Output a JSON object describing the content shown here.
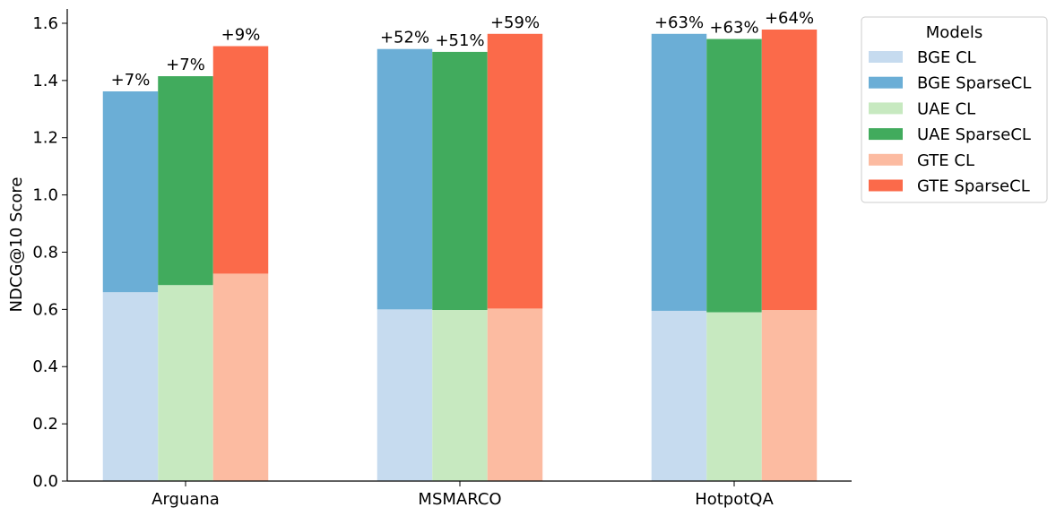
{
  "chart_data": {
    "type": "bar",
    "stacked": true,
    "categories": [
      "Arguana",
      "MSMARCO",
      "HotpotQA"
    ],
    "ylabel": "NDCG@10 Score",
    "xlabel": "",
    "ylim": [
      0,
      1.65
    ],
    "yticks": [
      "0.0",
      "0.2",
      "0.4",
      "0.6",
      "0.8",
      "1.0",
      "1.2",
      "1.4",
      "1.6"
    ],
    "legend": {
      "title": "Models",
      "placement": "outside-right-top",
      "entries": [
        "BGE CL",
        "BGE SparseCL",
        "UAE CL",
        "UAE SparseCL",
        "GTE CL",
        "GTE SparseCL"
      ]
    },
    "groups": [
      {
        "model": "BGE",
        "base_name": "BGE CL",
        "top_name": "BGE SparseCL",
        "base_color": "#c6dbef",
        "top_color": "#6baed6",
        "base": [
          0.66,
          0.6,
          0.595
        ],
        "total": [
          1.362,
          1.51,
          1.563
        ],
        "labels": [
          "+7%",
          "+52%",
          "+63%"
        ]
      },
      {
        "model": "UAE",
        "base_name": "UAE CL",
        "top_name": "UAE SparseCL",
        "base_color": "#c7e9c0",
        "top_color": "#41ab5d",
        "base": [
          0.685,
          0.598,
          0.59
        ],
        "total": [
          1.415,
          1.5,
          1.545
        ],
        "labels": [
          "+7%",
          "+51%",
          "+63%"
        ]
      },
      {
        "model": "GTE",
        "base_name": "GTE CL",
        "top_name": "GTE SparseCL",
        "base_color": "#fcbba1",
        "top_color": "#fb6a4a",
        "base": [
          0.725,
          0.603,
          0.598
        ],
        "total": [
          1.52,
          1.563,
          1.578
        ],
        "labels": [
          "+9%",
          "+59%",
          "+64%"
        ]
      }
    ]
  }
}
